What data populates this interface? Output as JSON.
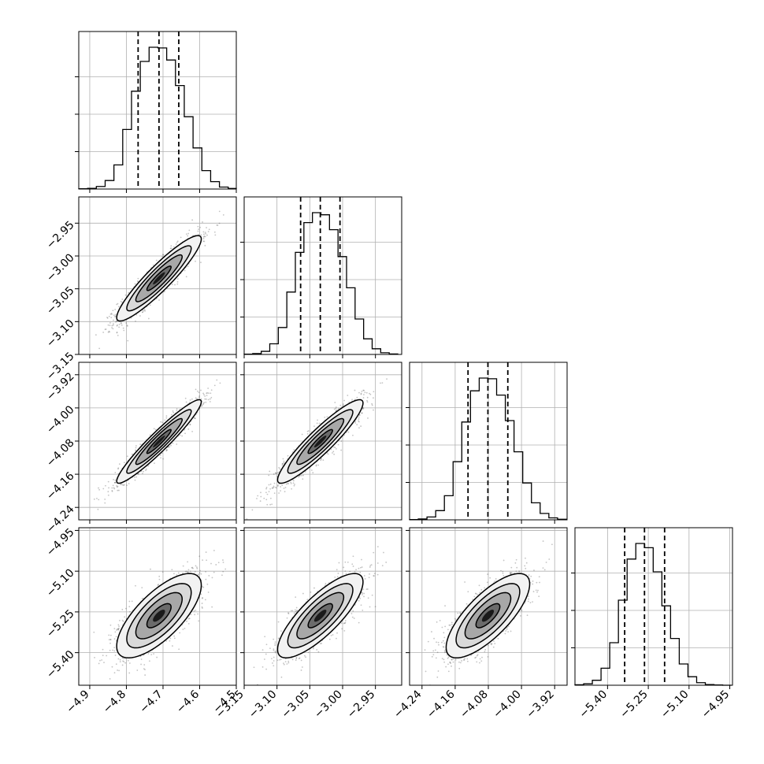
{
  "chart_data": {
    "type": "corner",
    "title": "",
    "grid": true,
    "parameters": [
      {
        "xlim": [
          -4.93,
          -4.5
        ],
        "ticks": [
          -4.9,
          -4.8,
          -4.7,
          -4.6,
          -4.5
        ],
        "tick_labels": [
          "−4.9",
          "−4.8",
          "−4.7",
          "−4.6",
          "−4.5"
        ]
      },
      {
        "xlim": [
          -3.15,
          -2.91
        ],
        "ticks": [
          -3.15,
          -3.1,
          -3.05,
          -3.0,
          -2.95
        ],
        "tick_labels": [
          "−3.15",
          "−3.10",
          "−3.05",
          "−3.00",
          "−2.95"
        ]
      },
      {
        "xlim": [
          -4.27,
          -3.89
        ],
        "ticks": [
          -4.24,
          -4.16,
          -4.08,
          -4.0,
          -3.92
        ],
        "tick_labels": [
          "−4.24",
          "−4.16",
          "−4.08",
          "−4.00",
          "−3.92"
        ]
      },
      {
        "xlim": [
          -5.52,
          -4.94
        ],
        "ticks": [
          -5.4,
          -5.25,
          -5.1,
          -4.95
        ],
        "tick_labels": [
          "−5.40",
          "−5.25",
          "−5.10",
          "−4.95"
        ]
      }
    ],
    "y_tick_labels": [
      null,
      {
        "ticks": [
          -2.95,
          -3.0,
          -3.05,
          -3.1,
          -3.15
        ],
        "labels": [
          "−2.95",
          "−3.00",
          "−3.05",
          "−3.10",
          "−3.15"
        ]
      },
      {
        "ticks": [
          -3.92,
          -4.0,
          -4.08,
          -4.16,
          -4.24
        ],
        "labels": [
          "−3.92",
          "−4.00",
          "−4.08",
          "−4.16",
          "−4.24"
        ]
      },
      {
        "ticks": [
          -4.95,
          -5.1,
          -5.25,
          -5.4
        ],
        "labels": [
          "−4.95",
          "−5.10",
          "−5.25",
          "−5.40"
        ]
      }
    ],
    "histograms": [
      {
        "param": 0,
        "bins": [
          -4.93,
          -4.906,
          -4.882,
          -4.858,
          -4.834,
          -4.81,
          -4.786,
          -4.762,
          -4.738,
          -4.714,
          -4.69,
          -4.666,
          -4.642,
          -4.618,
          -4.594,
          -4.57,
          -4.546,
          -4.522,
          -4.5
        ],
        "counts": [
          2,
          5,
          18,
          60,
          170,
          420,
          690,
          900,
          1000,
          995,
          910,
          730,
          510,
          290,
          130,
          52,
          14,
          4
        ],
        "quantiles": [
          -4.768,
          -4.711,
          -4.657
        ]
      },
      {
        "param": 1,
        "bins": [
          -3.15,
          -3.137,
          -3.124,
          -3.111,
          -3.098,
          -3.085,
          -3.072,
          -3.059,
          -3.046,
          -3.033,
          -3.02,
          -3.007,
          -2.994,
          -2.981,
          -2.968,
          -2.955,
          -2.942,
          -2.929,
          -2.916
        ],
        "counts": [
          2,
          6,
          22,
          75,
          190,
          440,
          720,
          930,
          1000,
          985,
          880,
          690,
          470,
          250,
          110,
          40,
          12,
          3
        ],
        "quantiles": [
          -3.064,
          -3.034,
          -3.004
        ]
      },
      {
        "param": 2,
        "bins": [
          -4.27,
          -4.249,
          -4.228,
          -4.207,
          -4.186,
          -4.165,
          -4.144,
          -4.123,
          -4.102,
          -4.081,
          -4.06,
          -4.039,
          -4.018,
          -3.997,
          -3.976,
          -3.955,
          -3.934,
          -3.913,
          -3.892
        ],
        "counts": [
          2,
          6,
          20,
          65,
          170,
          410,
          690,
          910,
          1000,
          995,
          880,
          700,
          480,
          260,
          120,
          45,
          14,
          4
        ],
        "quantiles": [
          -4.129,
          -4.081,
          -4.033
        ]
      },
      {
        "param": 3,
        "bins": [
          -5.52,
          -5.488,
          -5.456,
          -5.424,
          -5.392,
          -5.36,
          -5.328,
          -5.296,
          -5.264,
          -5.232,
          -5.2,
          -5.168,
          -5.136,
          -5.104,
          -5.072,
          -5.04,
          -5.008,
          -4.976,
          -4.944
        ],
        "counts": [
          3,
          10,
          35,
          120,
          300,
          600,
          890,
          1000,
          970,
          800,
          560,
          330,
          150,
          60,
          18,
          5,
          2,
          0
        ],
        "quantiles": [
          -5.337,
          -5.264,
          -5.19
        ]
      }
    ],
    "scatter_2d": [
      {
        "x_param": 0,
        "y_param": 1,
        "center": [
          -4.711,
          -3.034
        ],
        "sd": [
          0.055,
          0.031
        ],
        "rho": 0.92
      },
      {
        "x_param": 0,
        "y_param": 2,
        "center": [
          -4.711,
          -4.081
        ],
        "sd": [
          0.055,
          0.048
        ],
        "rho": 0.95
      },
      {
        "x_param": 1,
        "y_param": 2,
        "center": [
          -3.034,
          -4.081
        ],
        "sd": [
          0.031,
          0.048
        ],
        "rho": 0.92
      },
      {
        "x_param": 0,
        "y_param": 3,
        "center": [
          -4.711,
          -5.264
        ],
        "sd": [
          0.055,
          0.074
        ],
        "rho": 0.72
      },
      {
        "x_param": 1,
        "y_param": 3,
        "center": [
          -3.034,
          -5.264
        ],
        "sd": [
          0.031,
          0.074
        ],
        "rho": 0.8
      },
      {
        "x_param": 2,
        "y_param": 3,
        "center": [
          -4.081,
          -5.264
        ],
        "sd": [
          0.048,
          0.074
        ],
        "rho": 0.75
      }
    ]
  }
}
